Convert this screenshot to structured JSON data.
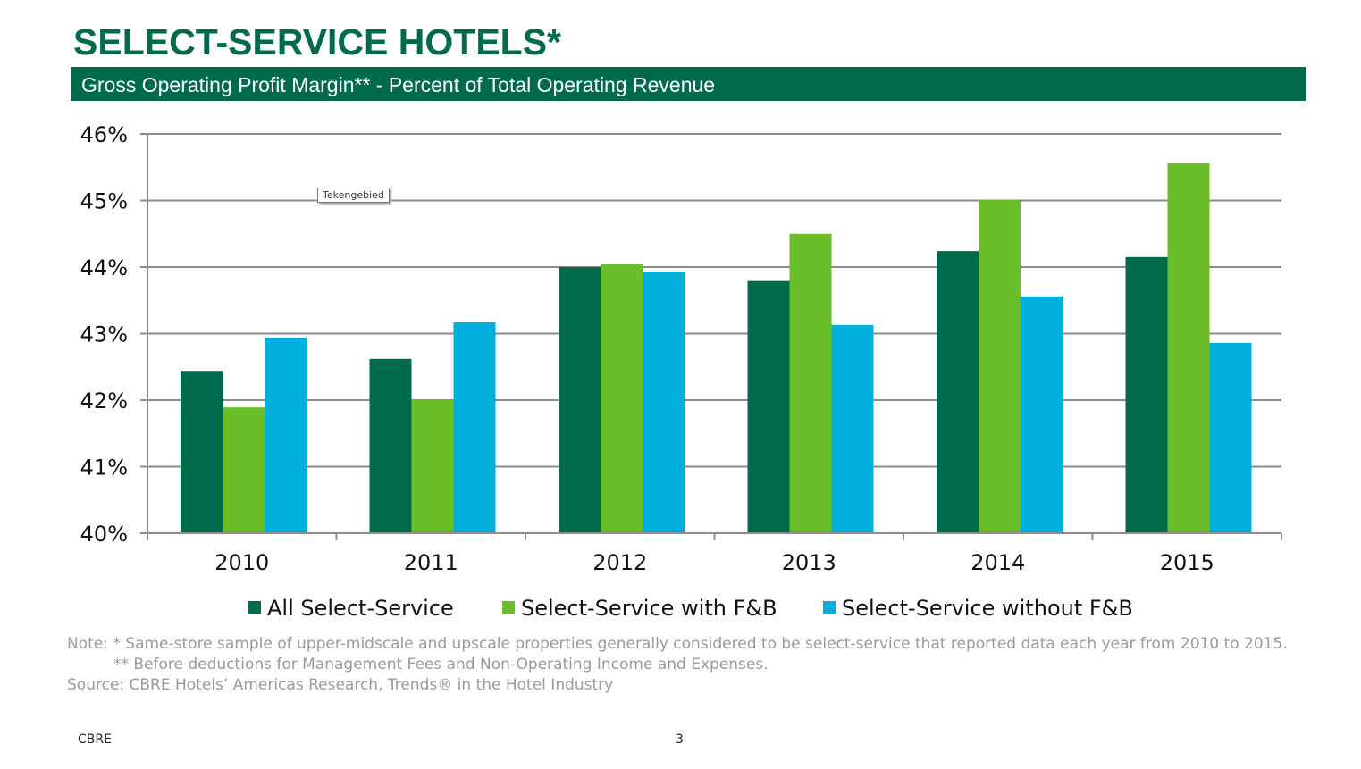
{
  "title": "SELECT-SERVICE HOTELS*",
  "subtitle": "Gross Operating Profit Margin** - Percent of Total Operating Revenue",
  "tooltip": "Tekengebied",
  "chart_data": {
    "type": "bar",
    "categories": [
      "2010",
      "2011",
      "2012",
      "2013",
      "2014",
      "2015"
    ],
    "ylim": [
      40,
      46
    ],
    "yticks": [
      "40%",
      "41%",
      "42%",
      "43%",
      "44%",
      "45%",
      "46%"
    ],
    "grid": true,
    "legend": "bottom",
    "series": [
      {
        "name": "All Select-Service",
        "color": "#006A4D",
        "values": [
          42.44,
          42.62,
          44.0,
          43.79,
          44.24,
          44.15
        ]
      },
      {
        "name": "Select-Service with F&B",
        "color": "#6BBE2A",
        "values": [
          41.89,
          42.01,
          44.04,
          44.5,
          45.01,
          45.56
        ]
      },
      {
        "name": "Select-Service without F&B",
        "color": "#00B0DC",
        "values": [
          42.94,
          43.17,
          43.93,
          43.13,
          43.56,
          42.86
        ]
      }
    ]
  },
  "notes": {
    "line1": "Note: * Same-store sample of upper-midscale and upscale properties generally considered to be select-service that reported data each year from 2010 to 2015.",
    "line2": "** Before deductions for Management Fees and Non-Operating Income and Expenses.",
    "line3": "Source: CBRE Hotels’ Americas Research, Trends® in the Hotel Industry"
  },
  "footer": {
    "brand": "CBRE",
    "page": "3"
  }
}
